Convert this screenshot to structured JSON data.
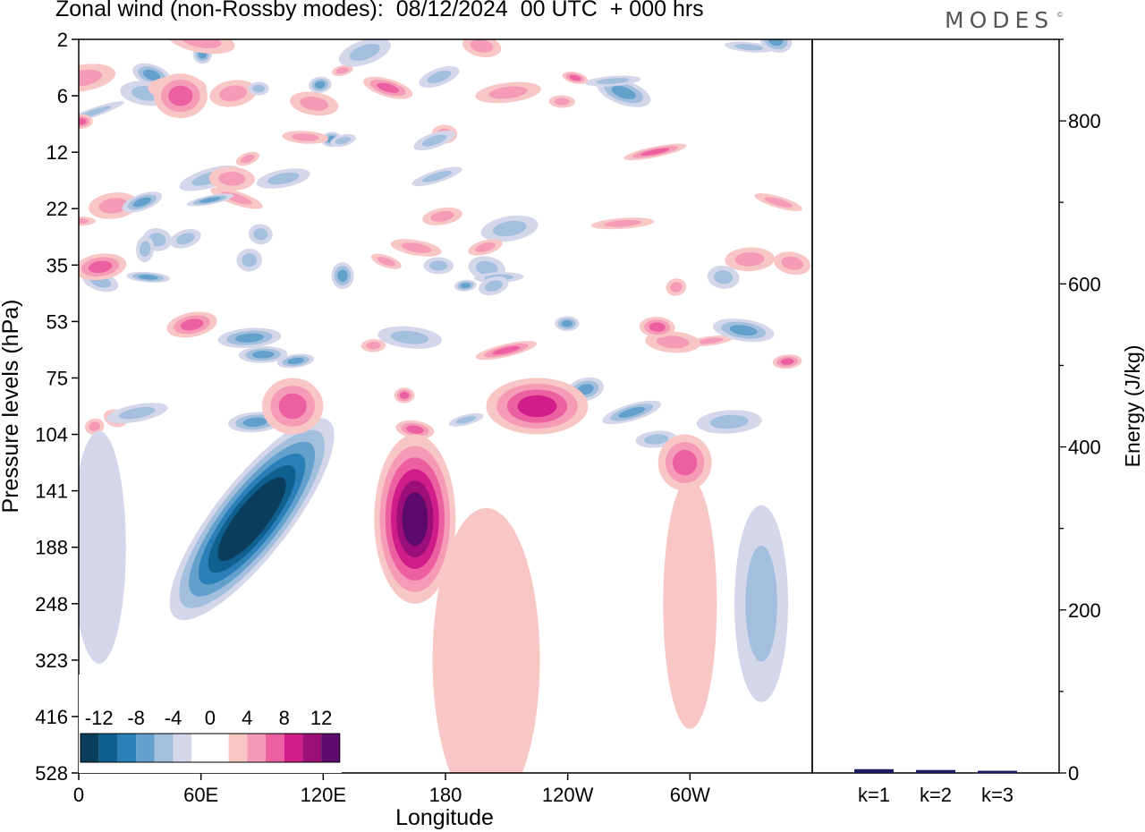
{
  "header": {
    "title": "Zonal wind (non-Rossby modes):  08/12/2024  00 UTC  + 000 hrs",
    "brand": "MODES",
    "brand_mark": "©"
  },
  "chart_data": [
    {
      "type": "heatmap",
      "title": "Zonal wind (non-Rossby modes):  08/12/2024  00 UTC  + 000 hrs",
      "xlabel": "Longitude",
      "ylabel": "Pressure levels (hPa)",
      "x_ticks": [
        "0",
        "60E",
        "120E",
        "180",
        "120W",
        "60W"
      ],
      "x_tick_degrees": [
        0,
        60,
        120,
        180,
        240,
        300
      ],
      "xlim": [
        0,
        360
      ],
      "y_ticks": [
        "2",
        "6",
        "12",
        "22",
        "35",
        "53",
        "75",
        "104",
        "141",
        "188",
        "248",
        "323",
        "416",
        "528"
      ],
      "y_scale": "model-level (top = 2 hPa, bottom = 528 hPa)",
      "colorbar": {
        "labels": [
          "-12",
          "-8",
          "-4",
          "0",
          "4",
          "8",
          "12"
        ],
        "colors": [
          "#0b3d5c",
          "#0f5f8f",
          "#2b7fb8",
          "#63a0cc",
          "#a2bfde",
          "#d4d6ea",
          "#ffffff",
          "#ffffff",
          "#f9c6c6",
          "#f59bb8",
          "#ec5fa0",
          "#cf1d8a",
          "#9c0f79",
          "#5b0a6c"
        ]
      },
      "features": [
        {
          "sign": "negative",
          "peak": -14,
          "lon_range": [
            40,
            130
          ],
          "level_range": [
            "248",
            "104"
          ],
          "note": "tilted easterly band"
        },
        {
          "sign": "positive",
          "peak": 12,
          "lon_range": [
            145,
            185
          ],
          "level_range": [
            "248",
            "104"
          ]
        },
        {
          "sign": "positive",
          "peak": 8,
          "lon_range": [
            200,
            250
          ],
          "level_range": [
            "104",
            "75"
          ]
        },
        {
          "sign": "positive",
          "peak": 6,
          "lon_range": [
            90,
            120
          ],
          "level_range": [
            "104",
            "75"
          ]
        },
        {
          "sign": "positive",
          "peak": 6,
          "lon_range": [
            40,
            60
          ],
          "level_range": [
            "6",
            "6"
          ]
        },
        {
          "sign": "positive",
          "peak": 6,
          "lon_range": [
            285,
            310
          ],
          "level_range": [
            "141",
            "104"
          ]
        }
      ]
    },
    {
      "type": "bar",
      "ylabel": "Energy (J/kg)",
      "categories": [
        "k=1",
        "k=2",
        "k=3"
      ],
      "values": [
        3,
        2,
        1
      ],
      "ylim": [
        0,
        900
      ],
      "y_ticks": [
        "0",
        "200",
        "400",
        "600",
        "800"
      ],
      "bar_color": "#1a1a5e"
    }
  ]
}
